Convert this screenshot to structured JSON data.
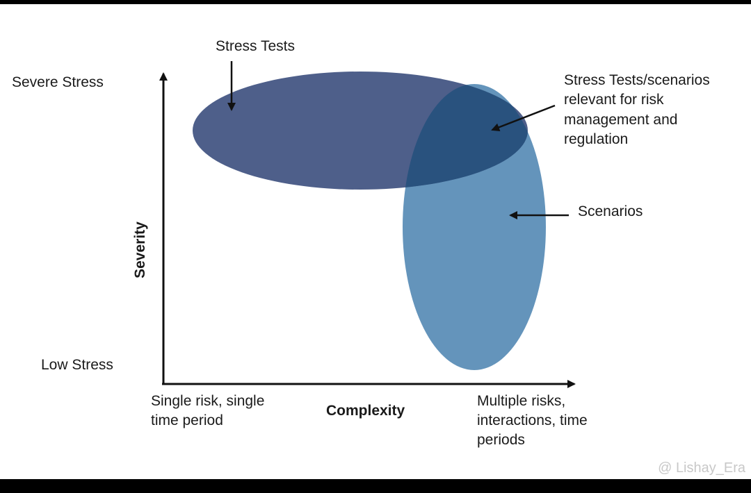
{
  "diagram": {
    "y_axis": {
      "label": "Severity",
      "top": "Severe Stress",
      "bottom": "Low Stress"
    },
    "x_axis": {
      "label": "Complexity",
      "left": [
        "Single risk, single",
        "time period"
      ],
      "right": [
        "Multiple risks,",
        "interactions, time",
        "periods"
      ]
    },
    "callouts": {
      "stress_tests": "Stress Tests",
      "overlap": [
        "Stress Tests/scenarios",
        "relevant for risk",
        "management and",
        "regulation"
      ],
      "scenarios": "Scenarios"
    },
    "colors": {
      "stress_tests": "#4e5f8a",
      "scenarios": "#6494bb",
      "overlap": "#29527e"
    }
  },
  "watermark": "@ Lishay_Era"
}
